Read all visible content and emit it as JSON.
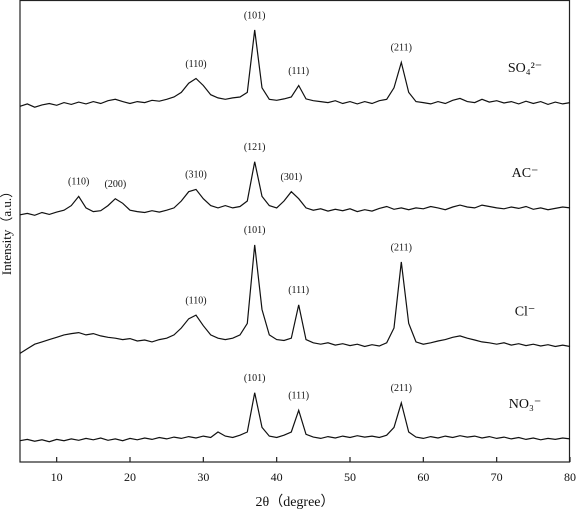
{
  "chart_data": {
    "type": "line",
    "xlabel": "2θ（degree）",
    "ylabel": "Intensity（a.u.）",
    "xlim": [
      5,
      80
    ],
    "xticks": [
      10,
      20,
      30,
      40,
      50,
      60,
      70,
      80
    ],
    "ylim": [
      0,
      100
    ],
    "x": [
      5,
      6,
      7,
      8,
      9,
      10,
      11,
      12,
      13,
      14,
      15,
      16,
      17,
      18,
      19,
      20,
      21,
      22,
      23,
      24,
      25,
      26,
      27,
      28,
      29,
      30,
      31,
      32,
      33,
      34,
      35,
      36,
      37,
      38,
      39,
      40,
      41,
      42,
      43,
      44,
      45,
      46,
      47,
      48,
      49,
      50,
      51,
      52,
      53,
      54,
      55,
      56,
      57,
      58,
      59,
      60,
      61,
      62,
      63,
      64,
      65,
      66,
      67,
      68,
      69,
      70,
      71,
      72,
      73,
      74,
      75,
      76,
      77,
      78,
      79,
      80
    ],
    "series": [
      {
        "name": "SO₄²⁻",
        "color": "#111111",
        "values": [
          77,
          77.5,
          76.8,
          77.3,
          77.6,
          77.2,
          77.8,
          77.4,
          77.9,
          77.5,
          78,
          77.6,
          78.2,
          78.5,
          78,
          77.6,
          78,
          77.8,
          78.3,
          78.1,
          78.5,
          79,
          80,
          82,
          83,
          81.5,
          79.5,
          78.8,
          78.5,
          78.8,
          79,
          80,
          93.5,
          81,
          78.5,
          78.3,
          78.6,
          79,
          81.5,
          78.6,
          78.2,
          78,
          77.8,
          78.2,
          77.6,
          78,
          77.5,
          78,
          77.6,
          78.2,
          78.5,
          81,
          86.5,
          80,
          78,
          77.8,
          77.5,
          78,
          77.6,
          78.3,
          78.7,
          78,
          77.8,
          78.5,
          77.9,
          78.2,
          77.7,
          78,
          77.5,
          78.1,
          77.6,
          78,
          77.4,
          77.9,
          77.5,
          77.8
        ],
        "peaks": [
          {
            "x": 29,
            "label": "(110)"
          },
          {
            "x": 37,
            "label": "(101)"
          },
          {
            "x": 43,
            "label": "(111)"
          },
          {
            "x": 57,
            "label": "(211)"
          }
        ]
      },
      {
        "name": "AC⁻",
        "color": "#111111",
        "values": [
          53.5,
          53.8,
          53.4,
          54,
          53.6,
          54.1,
          54.5,
          55.5,
          57.5,
          55,
          54.2,
          54.4,
          55.5,
          57,
          56,
          54.5,
          54.2,
          54,
          54.4,
          54.1,
          54.5,
          55,
          56.5,
          58.5,
          59,
          57,
          55.5,
          55,
          55.5,
          55,
          55.3,
          56.5,
          65,
          57.5,
          55.5,
          55,
          56.5,
          58.5,
          57,
          55,
          54.5,
          54.8,
          54.3,
          54.7,
          54.4,
          54.8,
          54.2,
          54.6,
          54.3,
          54.9,
          55.3,
          54.7,
          55,
          54.6,
          55,
          54.8,
          55.3,
          55,
          54.6,
          55.2,
          55.6,
          55.2,
          55,
          55.6,
          55.3,
          55,
          54.8,
          55.2,
          54.9,
          55.3,
          54.7,
          55,
          54.6,
          54.9,
          55.2,
          55
        ],
        "peaks": [
          {
            "x": 13,
            "label": "(110)"
          },
          {
            "x": 18,
            "label": "(200)"
          },
          {
            "x": 29,
            "label": "(310)"
          },
          {
            "x": 37,
            "label": "(121)"
          },
          {
            "x": 42,
            "label": "(301)"
          }
        ]
      },
      {
        "name": "Cl⁻",
        "color": "#111111",
        "values": [
          23.5,
          24.5,
          25.5,
          26,
          26.5,
          27,
          27.5,
          27.8,
          28,
          27.5,
          27.8,
          27.3,
          27,
          26.8,
          26.5,
          26.7,
          26.2,
          26.4,
          26,
          26.5,
          26.8,
          27.5,
          29,
          31,
          31.8,
          29.5,
          27.5,
          26.8,
          26.5,
          26.8,
          27.5,
          30,
          47,
          33,
          27.5,
          26.5,
          26.3,
          26.8,
          34,
          26.5,
          25.8,
          25.5,
          25.8,
          25.3,
          25.6,
          25.2,
          25.5,
          25,
          25.4,
          25.1,
          25.8,
          29,
          43.3,
          30,
          26,
          25.5,
          25.8,
          26.2,
          26.5,
          27,
          27.3,
          26.8,
          26.4,
          26,
          25.8,
          25.5,
          25.8,
          25.3,
          25.6,
          25.2,
          25.5,
          25.1,
          25.4,
          25,
          25.3,
          25
        ],
        "peaks": [
          {
            "x": 29,
            "label": "(110)"
          },
          {
            "x": 37,
            "label": "(101)"
          },
          {
            "x": 43,
            "label": "(111)"
          },
          {
            "x": 57,
            "label": "(211)"
          }
        ]
      },
      {
        "name": "NO₃⁻",
        "color": "#111111",
        "values": [
          4.6,
          4.9,
          4.5,
          4.8,
          4.4,
          4.9,
          4.6,
          5,
          4.7,
          5.1,
          4.8,
          5.2,
          4.7,
          5,
          4.6,
          5.1,
          4.8,
          5.2,
          4.9,
          5.3,
          5,
          5.4,
          5.1,
          5.5,
          5.2,
          5.6,
          5.3,
          6.5,
          5.6,
          5.3,
          5.8,
          6.5,
          15,
          7.5,
          5.6,
          5.3,
          5.8,
          6.5,
          11.2,
          6,
          5.4,
          5.1,
          5.5,
          5.2,
          5.6,
          5.3,
          5.7,
          5.4,
          5.6,
          5.3,
          5.8,
          7.5,
          12.8,
          6.5,
          5.4,
          5.1,
          5.5,
          5.2,
          5.6,
          5.3,
          5.7,
          5.4,
          5.6,
          5.2,
          5.5,
          5.1,
          5.4,
          5,
          5.3,
          4.9,
          5.2,
          4.8,
          5.1,
          4.9,
          5.2,
          5
        ],
        "peaks": [
          {
            "x": 37,
            "label": "(101)"
          },
          {
            "x": 43,
            "label": "(111)"
          },
          {
            "x": 57,
            "label": "(211)"
          }
        ]
      }
    ]
  }
}
